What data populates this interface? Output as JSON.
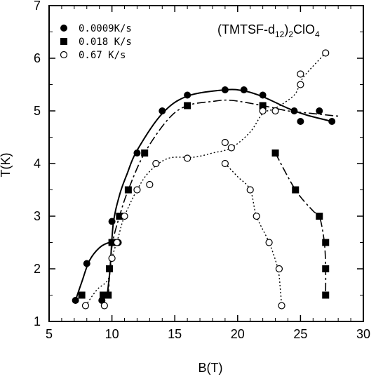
{
  "chart_data": {
    "type": "scatter",
    "annotation": {
      "main": "(TMTSF-d",
      "sub1": "12",
      "mid": ")",
      "sub2": "2",
      "tail": "ClO",
      "sub3": "4"
    },
    "xlabel": "B(T)",
    "ylabel": "T(K)",
    "xlim": [
      5,
      30
    ],
    "ylim": [
      1,
      7
    ],
    "xticks": [
      "5",
      "10",
      "15",
      "20",
      "25",
      "30"
    ],
    "yticks": [
      "1",
      "2",
      "3",
      "4",
      "5",
      "6",
      "7"
    ],
    "legend_position": "top-left",
    "series": [
      {
        "name": "0.0009K/s",
        "marker": "filled-circle",
        "points": [
          [
            7.1,
            1.4
          ],
          [
            8.0,
            2.1
          ],
          [
            9.2,
            1.4
          ],
          [
            9.6,
            1.5
          ],
          [
            9.8,
            2.0
          ],
          [
            10.0,
            2.9
          ],
          [
            10.5,
            2.5
          ],
          [
            12.0,
            4.2
          ],
          [
            14.0,
            5.0
          ],
          [
            16.0,
            5.3
          ],
          [
            19.0,
            5.4
          ],
          [
            20.5,
            5.4
          ],
          [
            22.0,
            5.3
          ],
          [
            24.5,
            5.0
          ],
          [
            25.0,
            4.8
          ],
          [
            26.5,
            5.0
          ],
          [
            27.5,
            4.8
          ]
        ],
        "curves": [
          [
            [
              7.1,
              1.4
            ],
            [
              7.6,
              1.75
            ],
            [
              8.2,
              2.15
            ],
            [
              9.0,
              2.4
            ],
            [
              9.8,
              2.5
            ],
            [
              10.6,
              2.52
            ]
          ],
          [
            [
              9.6,
              1.45
            ],
            [
              9.85,
              2.0
            ],
            [
              10.1,
              2.85
            ],
            [
              10.6,
              3.4
            ],
            [
              11.2,
              3.8
            ],
            [
              12.0,
              4.25
            ],
            [
              14.0,
              4.95
            ],
            [
              16.0,
              5.28
            ],
            [
              19.0,
              5.4
            ],
            [
              20.5,
              5.38
            ],
            [
              22.0,
              5.27
            ],
            [
              24.0,
              5.05
            ],
            [
              25.5,
              4.92
            ],
            [
              27.5,
              4.8
            ]
          ]
        ]
      },
      {
        "name": "0.018 K/s",
        "marker": "filled-square",
        "points": [
          [
            7.6,
            1.5
          ],
          [
            9.3,
            1.5
          ],
          [
            9.7,
            1.5
          ],
          [
            9.8,
            2.0
          ],
          [
            10.0,
            2.5
          ],
          [
            10.6,
            3.0
          ],
          [
            11.3,
            3.5
          ],
          [
            12.6,
            4.2
          ],
          [
            16.0,
            5.1
          ],
          [
            22.0,
            5.1
          ],
          [
            23.0,
            4.2
          ],
          [
            24.6,
            3.5
          ],
          [
            26.5,
            3.0
          ],
          [
            27.0,
            2.5
          ],
          [
            27.0,
            2.0
          ],
          [
            27.0,
            1.5
          ]
        ],
        "curves": [
          [
            [
              9.7,
              1.45
            ],
            [
              9.85,
              2.0
            ],
            [
              10.05,
              2.5
            ],
            [
              10.6,
              3.0
            ],
            [
              11.3,
              3.5
            ],
            [
              12.6,
              4.2
            ],
            [
              14.5,
              4.85
            ],
            [
              16.0,
              5.1
            ],
            [
              18.0,
              5.18
            ],
            [
              19.5,
              5.2
            ],
            [
              22.0,
              5.1
            ],
            [
              24.0,
              5.0
            ],
            [
              26.0,
              4.95
            ],
            [
              28.0,
              4.9
            ]
          ],
          [
            [
              23.0,
              4.2
            ],
            [
              24.6,
              3.5
            ],
            [
              26.0,
              3.1
            ],
            [
              26.5,
              3.0
            ],
            [
              26.9,
              2.5
            ],
            [
              27.0,
              2.0
            ],
            [
              27.0,
              1.5
            ]
          ]
        ]
      },
      {
        "name": "0.67  K/s",
        "marker": "open-circle",
        "points": [
          [
            7.9,
            1.3
          ],
          [
            9.4,
            1.3
          ],
          [
            10.0,
            2.2
          ],
          [
            10.4,
            2.5
          ],
          [
            11.0,
            3.0
          ],
          [
            12.0,
            3.5
          ],
          [
            13.0,
            3.6
          ],
          [
            13.5,
            4.0
          ],
          [
            16.0,
            4.1
          ],
          [
            19.0,
            4.4
          ],
          [
            19.5,
            4.3
          ],
          [
            22.0,
            5.0
          ],
          [
            23.0,
            5.0
          ],
          [
            25.0,
            5.5
          ],
          [
            25.0,
            5.7
          ],
          [
            27.0,
            6.1
          ],
          [
            19.0,
            4.0
          ],
          [
            21.0,
            3.5
          ],
          [
            21.5,
            3.0
          ],
          [
            22.5,
            2.5
          ],
          [
            23.3,
            2.0
          ],
          [
            23.5,
            1.3
          ]
        ],
        "curves": [
          [
            [
              7.9,
              1.3
            ],
            [
              8.8,
              1.6
            ],
            [
              9.7,
              1.8
            ],
            [
              10.0,
              2.2
            ],
            [
              10.5,
              2.6
            ],
            [
              11.0,
              3.0
            ],
            [
              12.0,
              3.5
            ],
            [
              13.0,
              3.85
            ],
            [
              14.5,
              4.1
            ],
            [
              16.5,
              4.12
            ],
            [
              18.0,
              4.2
            ],
            [
              19.5,
              4.3
            ],
            [
              21.0,
              4.6
            ],
            [
              22.0,
              4.95
            ],
            [
              23.0,
              5.05
            ],
            [
              24.5,
              5.3
            ],
            [
              25.0,
              5.55
            ],
            [
              25.5,
              5.72
            ],
            [
              27.0,
              6.1
            ]
          ],
          [
            [
              19.0,
              4.0
            ],
            [
              20.0,
              3.75
            ],
            [
              21.0,
              3.5
            ],
            [
              21.5,
              3.0
            ],
            [
              22.5,
              2.5
            ],
            [
              23.2,
              2.0
            ],
            [
              23.4,
              1.6
            ],
            [
              23.5,
              1.3
            ]
          ]
        ]
      }
    ]
  }
}
